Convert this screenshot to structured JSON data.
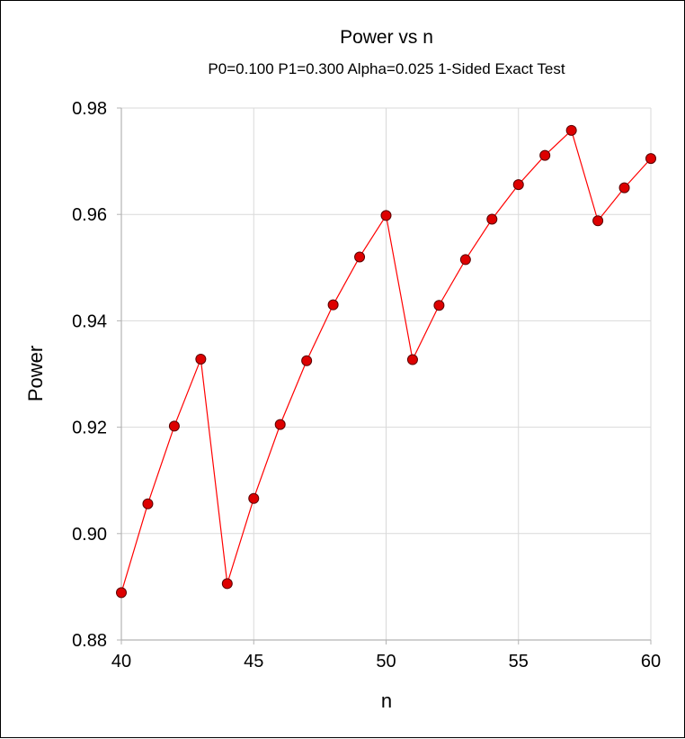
{
  "colors": {
    "line": "#ff0000",
    "marker_fill": "#dd0000",
    "marker_stroke": "#5a0000",
    "grid": "#d9d9d9",
    "axis": "#b3b3b3",
    "background": "#ffffff"
  },
  "chart_data": {
    "type": "line",
    "title": "Power vs n",
    "subtitle": "P0=0.100 P1=0.300 Alpha=0.025 1-Sided Exact Test",
    "xlabel": "n",
    "ylabel": "Power",
    "xlim": [
      40,
      60
    ],
    "ylim": [
      0.88,
      0.98
    ],
    "xticks": [
      40,
      45,
      50,
      55,
      60
    ],
    "yticks": [
      0.88,
      0.9,
      0.92,
      0.94,
      0.96,
      0.98
    ],
    "xtick_labels": [
      "40",
      "45",
      "50",
      "55",
      "60"
    ],
    "ytick_labels": [
      "0.88",
      "0.90",
      "0.92",
      "0.94",
      "0.96",
      "0.98"
    ],
    "grid": true,
    "markers": "circle",
    "x": [
      40,
      41,
      42,
      43,
      44,
      45,
      46,
      47,
      48,
      49,
      50,
      51,
      52,
      53,
      54,
      55,
      56,
      57,
      58,
      59,
      60
    ],
    "y": [
      0.8889,
      0.9056,
      0.9202,
      0.9328,
      0.8906,
      0.9066,
      0.9205,
      0.9325,
      0.943,
      0.952,
      0.9598,
      0.9327,
      0.9429,
      0.9515,
      0.9591,
      0.9656,
      0.9711,
      0.9758,
      0.9588,
      0.965,
      0.9705
    ]
  }
}
